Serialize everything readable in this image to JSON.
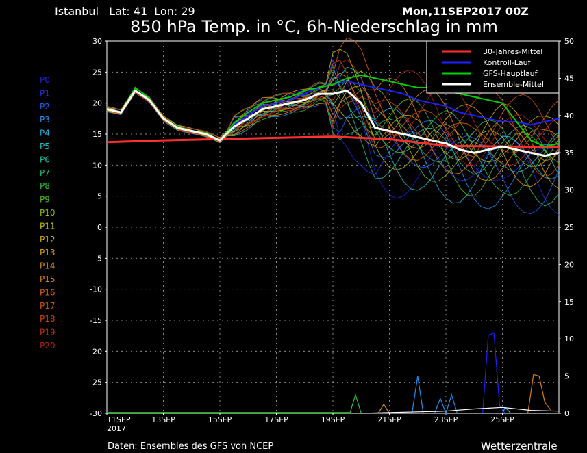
{
  "header": {
    "location": "Istanbul   Lat: 41  Lon: 29",
    "date": "Mon,11SEP2017 00Z",
    "title": "850 hPa Temp. in °C, 6h-Niederschlag in mm"
  },
  "footer": {
    "source": "Daten: Ensembles des GFS von NCEP",
    "brand": "Wetterzentrale"
  },
  "chart_data": {
    "type": "line",
    "title": "850 hPa Temp. in °C, 6h-Niederschlag in mm",
    "y_left": {
      "min": -30,
      "max": 30,
      "ticks": [
        30,
        25,
        20,
        15,
        10,
        5,
        0,
        -5,
        -10,
        -15,
        -20,
        -25,
        -30
      ]
    },
    "y_right": {
      "min": 0,
      "max": 50,
      "ticks": [
        50,
        45,
        40,
        35,
        30,
        25,
        20,
        15,
        10,
        5,
        0
      ]
    },
    "x_ticks": [
      "11SEP",
      "13SEP",
      "15SEP",
      "17SEP",
      "19SEP",
      "21SEP",
      "23SEP",
      "25SEP"
    ],
    "x_subtick": "2017",
    "x_range_days": [
      0,
      16
    ],
    "grid": true,
    "legend_position": "top-right",
    "legend": [
      {
        "name": "30-Jahres-Mittel",
        "color": "#ff3030"
      },
      {
        "name": "Kontroll-Lauf",
        "color": "#2020ff"
      },
      {
        "name": "GFS-Hauptlauf",
        "color": "#00d000"
      },
      {
        "name": "Ensemble-Mittel",
        "color": "#ffffff"
      }
    ],
    "members": [
      {
        "label": "P0",
        "color": "#2020d0"
      },
      {
        "label": "P1",
        "color": "#2030e0"
      },
      {
        "label": "P2",
        "color": "#2060f0"
      },
      {
        "label": "P3",
        "color": "#2090f0"
      },
      {
        "label": "P4",
        "color": "#20b0e0"
      },
      {
        "label": "P5",
        "color": "#20c0c0"
      },
      {
        "label": "P6",
        "color": "#20c0a0"
      },
      {
        "label": "P7",
        "color": "#20c070"
      },
      {
        "label": "P8",
        "color": "#30c040"
      },
      {
        "label": "P9",
        "color": "#50c020"
      },
      {
        "label": "P10",
        "color": "#90c010"
      },
      {
        "label": "P11",
        "color": "#c0c010"
      },
      {
        "label": "P12",
        "color": "#d0b010"
      },
      {
        "label": "P13",
        "color": "#e0a010"
      },
      {
        "label": "P14",
        "color": "#e09010"
      },
      {
        "label": "P15",
        "color": "#e08010"
      },
      {
        "label": "P16",
        "color": "#e06010"
      },
      {
        "label": "P17",
        "color": "#d05010"
      },
      {
        "label": "P18",
        "color": "#d04010"
      },
      {
        "label": "P19",
        "color": "#c03010"
      },
      {
        "label": "P20",
        "color": "#b02010"
      }
    ],
    "series": [
      {
        "name": "30-Jahres-Mittel",
        "color": "#ff3030",
        "width": 3,
        "x": [
          0,
          2,
          4,
          6,
          8,
          10,
          12,
          14,
          16
        ],
        "y": [
          13.7,
          14.0,
          14.2,
          14.4,
          14.6,
          14.2,
          13.1,
          13.0,
          12.9
        ]
      },
      {
        "name": "Kontroll-Lauf",
        "color": "#2020ff",
        "width": 2,
        "x": [
          0,
          0.5,
          1,
          1.5,
          2,
          2.5,
          3,
          3.5,
          4,
          4.5,
          5,
          5.5,
          6,
          6.5,
          7,
          7.5,
          8,
          8.5,
          9,
          9.5,
          10,
          10.5,
          11,
          11.5,
          12,
          12.5,
          13,
          13.5,
          14,
          14.5,
          15,
          15.5,
          16
        ],
        "y": [
          19.0,
          18.5,
          22.0,
          20.5,
          17.5,
          16.0,
          15.5,
          15.0,
          14.0,
          16.5,
          18.0,
          19.5,
          20.0,
          20.5,
          21.5,
          22.5,
          23.0,
          23.5,
          23.0,
          22.5,
          22.0,
          21.5,
          20.5,
          20.0,
          19.5,
          18.5,
          18.0,
          17.5,
          17.0,
          17.0,
          16.5,
          17.0,
          17.5
        ]
      },
      {
        "name": "GFS-Hauptlauf",
        "color": "#00d000",
        "width": 2,
        "x": [
          0,
          0.5,
          1,
          1.5,
          2,
          2.5,
          3,
          3.5,
          4,
          4.5,
          5,
          5.5,
          6,
          6.5,
          7,
          7.5,
          8,
          8.5,
          9,
          9.5,
          10,
          10.5,
          11,
          11.5,
          12,
          12.5,
          13,
          13.5,
          14,
          14.5,
          15,
          15.5,
          16
        ],
        "y": [
          19.0,
          18.5,
          22.5,
          20.8,
          17.5,
          16.2,
          15.5,
          15.2,
          14.0,
          16.8,
          18.5,
          20.0,
          20.5,
          21.0,
          22.0,
          22.5,
          23.0,
          24.0,
          24.5,
          24.0,
          23.5,
          23.0,
          22.5,
          22.5,
          22.0,
          21.5,
          21.0,
          20.5,
          20.0,
          17.0,
          14.0,
          13.0,
          13.5
        ]
      },
      {
        "name": "Ensemble-Mittel",
        "color": "#ffffff",
        "width": 3,
        "x": [
          0,
          0.5,
          1,
          1.5,
          2,
          2.5,
          3,
          3.5,
          4,
          4.5,
          5,
          5.5,
          6,
          6.5,
          7,
          7.5,
          8,
          8.5,
          9,
          9.5,
          10,
          10.5,
          11,
          11.5,
          12,
          12.5,
          13,
          13.5,
          14,
          14.5,
          15,
          15.5,
          16
        ],
        "y": [
          19.0,
          18.5,
          22.0,
          20.5,
          17.5,
          16.0,
          15.5,
          15.0,
          14.0,
          16.2,
          17.5,
          19.0,
          19.5,
          20.0,
          20.5,
          21.5,
          21.5,
          22.0,
          20.0,
          16.0,
          15.5,
          15.0,
          14.5,
          14.0,
          13.5,
          12.5,
          12.0,
          12.5,
          13.0,
          12.5,
          12.0,
          11.5,
          12.0
        ]
      }
    ],
    "precipitation": {
      "axis": "right (mm)",
      "series": [
        {
          "color": "#2020ff",
          "x": [
            13.3,
            13.5,
            13.7,
            13.9,
            14.1
          ],
          "y": [
            0,
            10.5,
            10.8,
            1,
            0
          ]
        },
        {
          "color": "#2090f0",
          "x": [
            10.8,
            11.0,
            11.2
          ],
          "y": [
            0,
            5,
            0
          ]
        },
        {
          "color": "#20c0c0",
          "x": [
            14.0,
            14.1,
            14.3
          ],
          "y": [
            0,
            0.8,
            0
          ]
        },
        {
          "color": "#e08010",
          "x": [
            14.9,
            15.1,
            15.3,
            15.5,
            15.7
          ],
          "y": [
            0,
            5.2,
            5.0,
            1.5,
            0.5
          ]
        },
        {
          "color": "#30c040",
          "x": [
            8.6,
            8.8,
            9.0
          ],
          "y": [
            0,
            2.5,
            0
          ]
        },
        {
          "color": "#e09010",
          "x": [
            9.6,
            9.8,
            10.0
          ],
          "y": [
            0,
            1.2,
            0
          ]
        },
        {
          "color": "#2090f0",
          "x": [
            11.6,
            11.8,
            12.0,
            12.2,
            12.4
          ],
          "y": [
            0,
            2,
            0,
            2.5,
            0
          ]
        },
        {
          "color": "#ffffff",
          "x": [
            9,
            10,
            11,
            12,
            13,
            14,
            15,
            16
          ],
          "y": [
            0,
            0.1,
            0.2,
            0.3,
            0.6,
            0.8,
            0.4,
            0.3
          ]
        }
      ]
    }
  }
}
